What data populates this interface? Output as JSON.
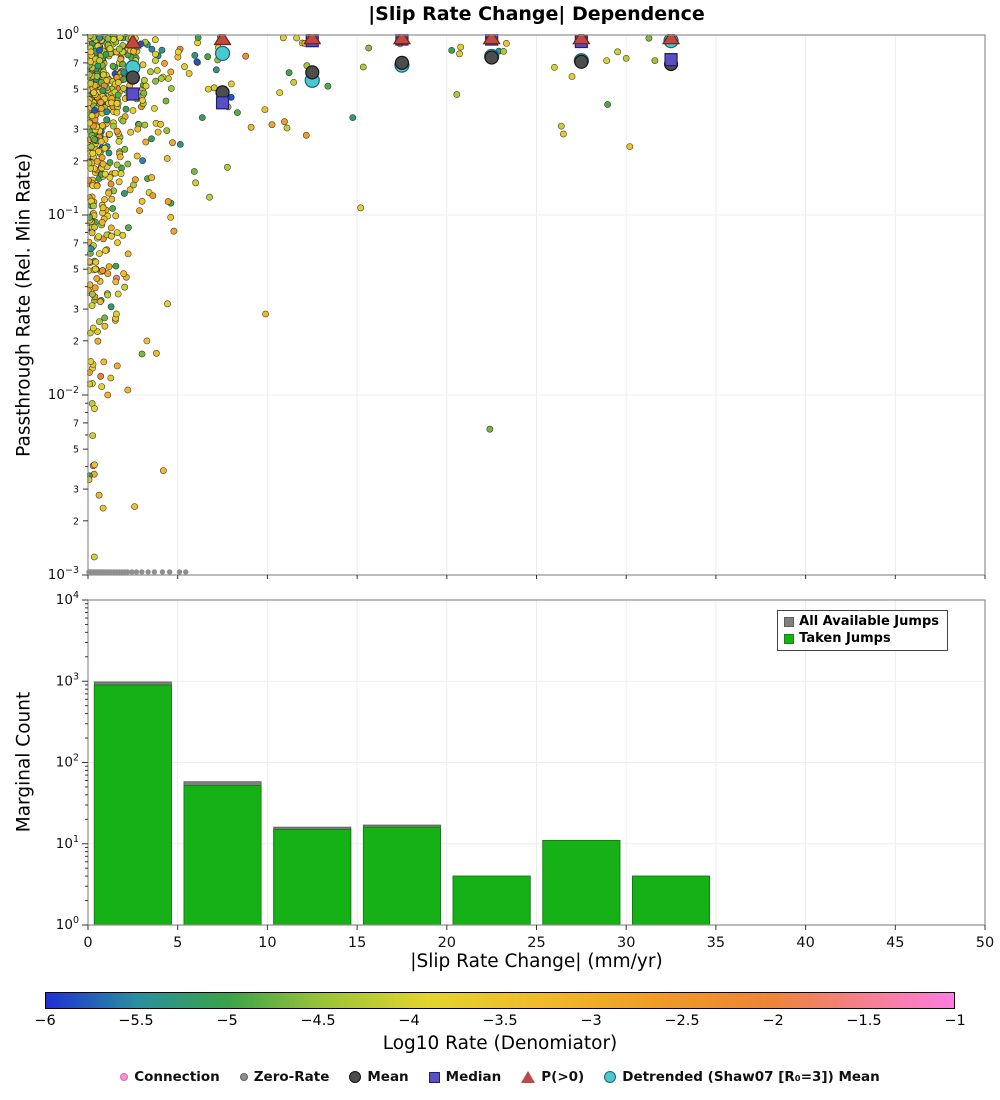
{
  "chart_data": [
    {
      "type": "scatter",
      "title": "|Slip Rate Change| Dependence",
      "ylabel": "Passthrough Rate (Rel. Min Rate)",
      "xlabel": "|Slip Rate Change| (mm/yr)",
      "xlim": [
        0,
        50
      ],
      "ylog_range": [
        -3,
        0
      ],
      "x_ticks": [
        0,
        5,
        10,
        15,
        20,
        25,
        30,
        35,
        40,
        45,
        50
      ],
      "y_decades": [
        0,
        -1,
        -2,
        -3
      ],
      "y_minor_labels": [
        7,
        5,
        3,
        2
      ],
      "summary": {
        "x": [
          2.5,
          7.5,
          12.5,
          17.5,
          22.5,
          27.5,
          32.5
        ],
        "mean": [
          0.58,
          0.48,
          0.62,
          0.7,
          0.75,
          0.71,
          0.69
        ],
        "median": [
          0.47,
          0.42,
          0.93,
          0.95,
          0.95,
          0.92,
          0.73
        ],
        "p_gt0": [
          0.91,
          0.95,
          0.96,
          0.96,
          0.96,
          0.96,
          0.96
        ],
        "detrended": [
          0.66,
          0.79,
          0.56,
          0.68,
          0.76,
          0.72,
          0.93
        ]
      },
      "zero_rate_y": 0.00105,
      "zero_rate_x": [
        0.05,
        0.12,
        0.2,
        0.28,
        0.36,
        0.45,
        0.55,
        0.65,
        0.75,
        0.85,
        0.95,
        1.05,
        1.18,
        1.3,
        1.45,
        1.6,
        1.75,
        1.9,
        2.05,
        2.2,
        2.45,
        2.7,
        3.0,
        3.35,
        3.7,
        4.15,
        4.55,
        5.1,
        5.45
      ],
      "extra_points": [
        {
          "x": 22.4,
          "ly": -2.19,
          "c": -4.7
        },
        {
          "x": 26.5,
          "ly": -0.55,
          "c": -3.6
        },
        {
          "x": 30.2,
          "ly": -0.62,
          "c": -3.5
        },
        {
          "x": 15.2,
          "ly": -0.96,
          "c": -3.8
        },
        {
          "x": 9.9,
          "ly": -1.55,
          "c": -3.2
        },
        {
          "x": 4.2,
          "ly": -2.42,
          "c": -3.3
        },
        {
          "x": 2.6,
          "ly": -2.62,
          "c": -3.4
        },
        {
          "x": 1.1,
          "ly": -2.0,
          "c": -3.1
        },
        {
          "x": 30.0,
          "ly": -0.13,
          "c": -4.2
        },
        {
          "x": 26.0,
          "ly": -0.18,
          "c": -4.0
        }
      ],
      "point_cloud": {
        "seed": 20,
        "count": 680,
        "near_frac": 0.78,
        "near_scale": 1.0,
        "mid_frac": 0.18,
        "mid_scale": 5.0,
        "x_max": 33,
        "y_scale_near": 0.55,
        "y_scale_far": 0.2,
        "c_mean": -4.1,
        "c_sd": 0.8
      }
    },
    {
      "type": "bar",
      "ylabel": "Marginal Count",
      "xlabel": "|Slip Rate Change| (mm/yr)",
      "ylog_range": [
        0,
        4
      ],
      "bin_edges": [
        0,
        5,
        10,
        15,
        20,
        25,
        30,
        35
      ],
      "series": [
        {
          "name": "All Available Jumps",
          "color": "#7f7f7f",
          "values": [
            980,
            58,
            16,
            17,
            4,
            11,
            4
          ]
        },
        {
          "name": "Taken Jumps",
          "color": "#16b116",
          "values": [
            900,
            52,
            15,
            16,
            4,
            11,
            4
          ]
        }
      ]
    },
    {
      "type": "colorbar",
      "label": "Log10 Rate (Denomiator)",
      "range": [
        -6,
        -1
      ],
      "ticks": [
        -6,
        -5.5,
        -5,
        -4.5,
        -4,
        -3.5,
        -3,
        -2.5,
        -2,
        -1.5,
        -1
      ],
      "stops": [
        [
          0.0,
          "#1f2fd4"
        ],
        [
          0.1,
          "#2a8f9e"
        ],
        [
          0.2,
          "#3aa24a"
        ],
        [
          0.3,
          "#97c23a"
        ],
        [
          0.42,
          "#e3d42f"
        ],
        [
          0.55,
          "#f0b92c"
        ],
        [
          0.68,
          "#ef9a28"
        ],
        [
          0.8,
          "#ed8436"
        ],
        [
          0.9,
          "#f4808e"
        ],
        [
          1.0,
          "#ff7ce0"
        ]
      ]
    }
  ],
  "colors": {
    "available": "#7f7f7f",
    "taken": "#16b116",
    "mean": "#4d4d4d",
    "median": "#584fc4",
    "p_gt0": "#bf4a41",
    "detrended": "#49c8d2",
    "connection": "#ff8fd0",
    "zero_rate": "#8f8f8f"
  },
  "legend": {
    "items": [
      {
        "label": "Connection",
        "shape": "circle",
        "color": "#ff8fd0",
        "edge": "#d06ba8"
      },
      {
        "label": "Zero-Rate",
        "shape": "circle",
        "color": "#8f8f8f",
        "edge": "#5f5f5f"
      },
      {
        "label": "Mean",
        "shape": "circle",
        "color": "#4d4d4d",
        "edge": "#141414"
      },
      {
        "label": "Median",
        "shape": "square",
        "color": "#584fc4",
        "edge": "#241f6b"
      },
      {
        "label": "P(>0)",
        "shape": "triangle",
        "color": "#bf4a41"
      },
      {
        "label": "Detrended (Shaw07 [R₀=3]) Mean",
        "shape": "circle",
        "color": "#49c8d2",
        "edge": "#17666e"
      }
    ]
  }
}
